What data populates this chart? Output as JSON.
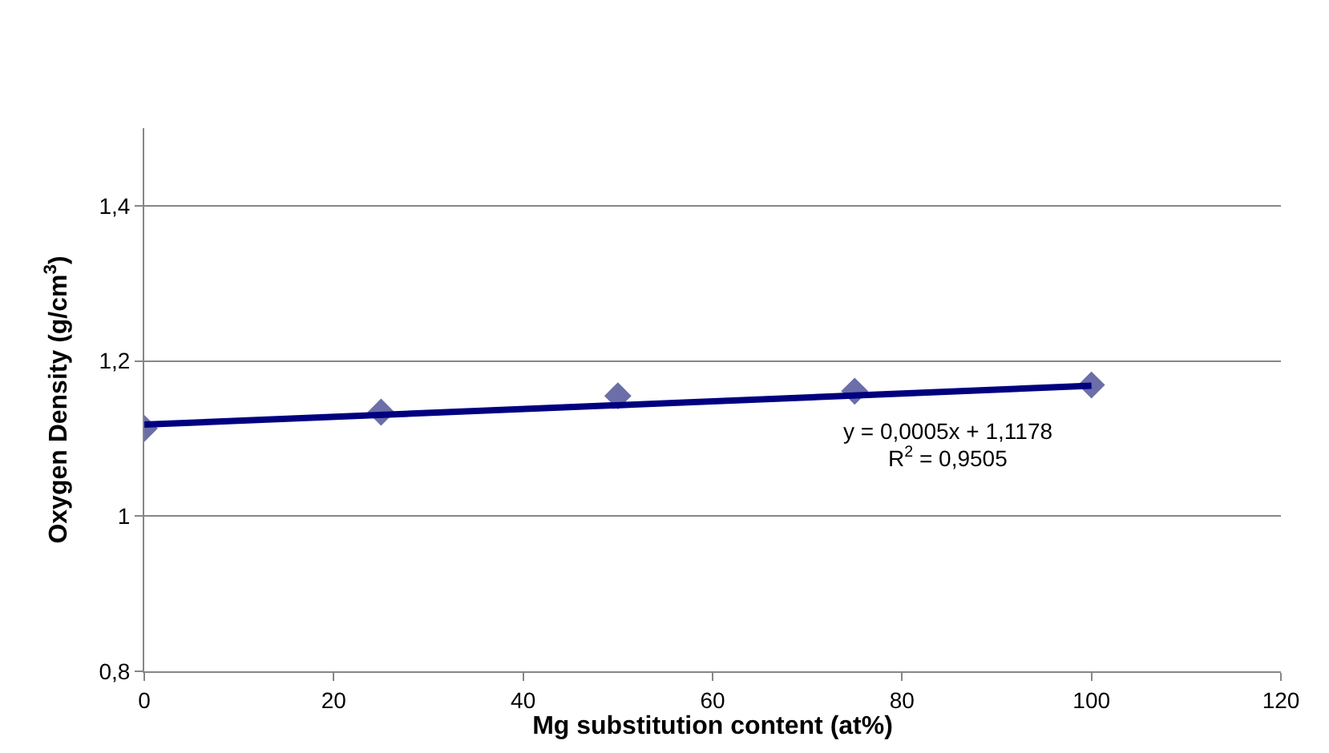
{
  "chart_data": {
    "type": "scatter",
    "xlabel": "Mg substitution content (at%)",
    "ylabel": "Oxygen Density (g/cm$^{3}$)",
    "series": [
      {
        "color": "#6b6ea8",
        "marker": "diamond",
        "x": [
          0,
          25,
          50,
          75,
          100
        ],
        "values": [
          1.113,
          1.134,
          1.155,
          1.161,
          1.169
        ]
      },
      {
        "type": "line",
        "color": "#000080",
        "marker": "none",
        "x": [
          0,
          100
        ],
        "values": [
          1.118,
          1.168
        ]
      }
    ],
    "xlim": [
      0,
      120
    ],
    "xticks": [
      0,
      20,
      40,
      60,
      80,
      100,
      120
    ],
    "ylim": [
      0.8,
      1.5
    ],
    "yticks": [
      {
        "value": 0.8,
        "label": "0,8"
      },
      1,
      {
        "value": 1.2,
        "label": "1,2"
      },
      {
        "value": 1.4,
        "label": "1,4"
      }
    ],
    "grid": "y",
    "annotations": [
      "y = 0,0005x + 1,1178",
      "R$^{2}$ = 0,9505"
    ]
  }
}
